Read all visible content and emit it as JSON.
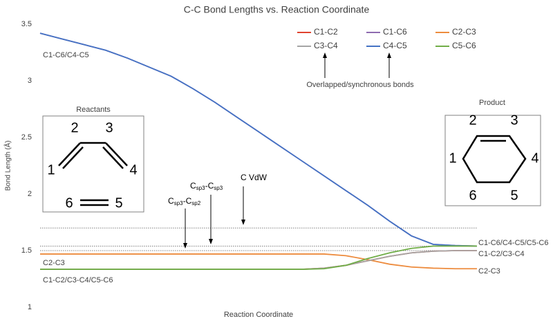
{
  "chart_data": {
    "type": "line",
    "title": "C-C Bond Lengths vs. Reaction Coordinate",
    "x_label": "Reaction Coordinate",
    "y_label": "Bond Length (Å)",
    "categories": [
      null,
      null,
      null,
      null,
      null,
      null,
      null,
      null,
      null,
      null,
      null,
      null,
      null,
      null,
      null,
      null,
      null,
      null,
      null,
      null,
      null
    ],
    "ylim": [
      1,
      3.5
    ],
    "yticks": [
      1,
      1.5,
      2,
      2.5,
      3,
      3.5
    ],
    "grid": false,
    "series": [
      {
        "name": "C1-C2",
        "color": "#e0432f",
        "values": [
          1.335,
          1.335,
          1.335,
          1.335,
          1.335,
          1.335,
          1.335,
          1.335,
          1.335,
          1.335,
          1.335,
          1.335,
          1.335,
          1.345,
          1.37,
          1.41,
          1.45,
          1.48,
          1.495,
          1.5,
          1.5
        ]
      },
      {
        "name": "C1-C6",
        "color": "#8e6bb0",
        "values": [
          3.42,
          3.37,
          3.32,
          3.27,
          3.2,
          3.12,
          3.04,
          2.93,
          2.81,
          2.68,
          2.55,
          2.42,
          2.29,
          2.16,
          2.03,
          1.9,
          1.76,
          1.63,
          1.555,
          1.545,
          1.54
        ]
      },
      {
        "name": "C2-C3",
        "color": "#ed8b3d",
        "values": [
          1.47,
          1.47,
          1.47,
          1.47,
          1.47,
          1.47,
          1.47,
          1.47,
          1.47,
          1.47,
          1.47,
          1.47,
          1.47,
          1.47,
          1.455,
          1.42,
          1.38,
          1.355,
          1.345,
          1.34,
          1.34
        ]
      },
      {
        "name": "C3-C4",
        "color": "#a5a5a5",
        "values": [
          1.335,
          1.335,
          1.335,
          1.335,
          1.335,
          1.335,
          1.335,
          1.335,
          1.335,
          1.335,
          1.335,
          1.335,
          1.335,
          1.345,
          1.37,
          1.41,
          1.45,
          1.48,
          1.495,
          1.5,
          1.5
        ]
      },
      {
        "name": "C4-C5",
        "color": "#4472c4",
        "values": [
          3.42,
          3.37,
          3.32,
          3.27,
          3.2,
          3.12,
          3.04,
          2.93,
          2.81,
          2.68,
          2.55,
          2.42,
          2.29,
          2.16,
          2.03,
          1.9,
          1.76,
          1.63,
          1.555,
          1.545,
          1.54
        ]
      },
      {
        "name": "C5-C6",
        "color": "#70ad47",
        "values": [
          1.335,
          1.335,
          1.335,
          1.335,
          1.335,
          1.335,
          1.335,
          1.335,
          1.335,
          1.335,
          1.335,
          1.335,
          1.335,
          1.34,
          1.37,
          1.43,
          1.48,
          1.52,
          1.54,
          1.54,
          1.54
        ]
      }
    ],
    "reference_lines": [
      {
        "value": 1.7,
        "label_parts": [
          "C VdW"
        ]
      },
      {
        "value": 1.54,
        "label_parts": [
          "C",
          "sp3",
          "-C",
          "sp3"
        ]
      },
      {
        "value": 1.5,
        "label_parts": [
          "C",
          "sp3",
          "-C",
          "sp2"
        ]
      }
    ],
    "annotations": {
      "start_top": "C1-C6/C4-C5",
      "start_mid": "C2-C3",
      "start_low": "C1-C2/C3-C4/C5-C6",
      "end_top": "C1-C6/C4-C5/C5-C6",
      "end_mid": "C1-C2/C3-C4",
      "end_low": "C2-C3",
      "overlap": "Overlapped/synchronous bonds"
    },
    "reactants": {
      "title": "Reactants",
      "atoms": [
        "1",
        "2",
        "3",
        "4",
        "5",
        "6"
      ]
    },
    "product": {
      "title": "Product",
      "atoms": [
        "1",
        "2",
        "3",
        "4",
        "5",
        "6"
      ]
    }
  }
}
